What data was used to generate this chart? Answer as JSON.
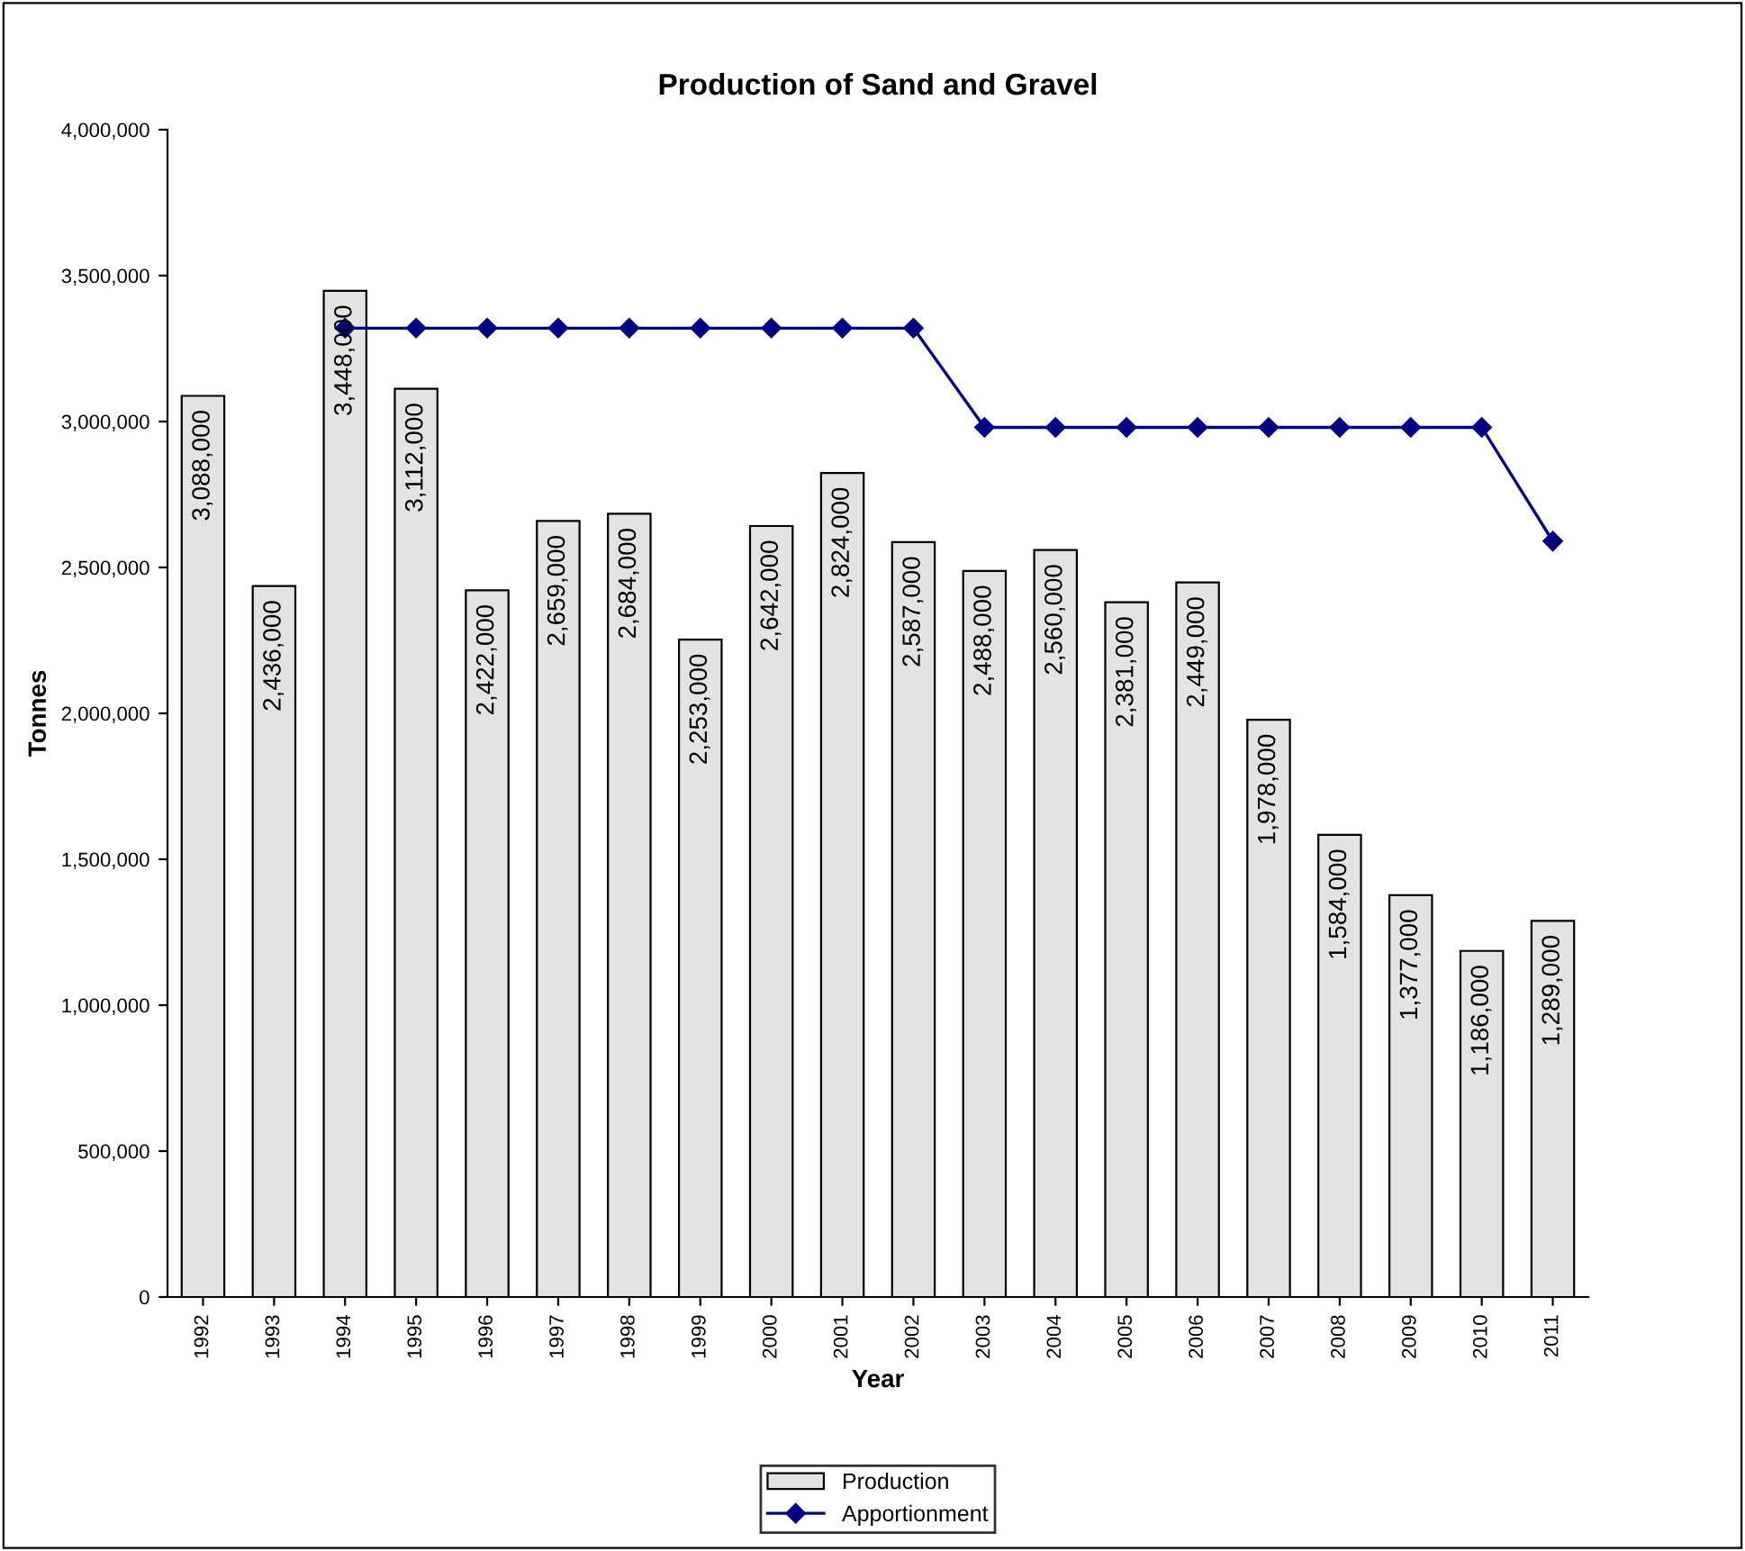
{
  "chart_data": {
    "type": "bar",
    "title": "Production of Sand and Gravel",
    "xlabel": "Year",
    "ylabel": "Tonnes",
    "categories": [
      "1992",
      "1993",
      "1994",
      "1995",
      "1996",
      "1997",
      "1998",
      "1999",
      "2000",
      "2001",
      "2002",
      "2003",
      "2004",
      "2005",
      "2006",
      "2007",
      "2008",
      "2009",
      "2010",
      "2011"
    ],
    "series": [
      {
        "name": "Production",
        "color": "#e3e3e3",
        "values": [
          3088000,
          2436000,
          3448000,
          3112000,
          2422000,
          2659000,
          2684000,
          2253000,
          2642000,
          2824000,
          2587000,
          2488000,
          2560000,
          2381000,
          2449000,
          1978000,
          1584000,
          1377000,
          1186000,
          1289000
        ],
        "value_labels": [
          "3,088,000",
          "2,436,000",
          "3,448,000",
          "3,112,000",
          "2,422,000",
          "2,659,000",
          "2,684,000",
          "2,253,000",
          "2,642,000",
          "2,824,000",
          "2,587,000",
          "2,488,000",
          "2,560,000",
          "2,381,000",
          "2,449,000",
          "1,978,000",
          "1,584,000",
          "1,377,000",
          "1,186,000",
          "1,289,000"
        ]
      },
      {
        "name": "Apportionment",
        "type": "line",
        "color": "#000080",
        "marker": "diamond",
        "values": [
          null,
          null,
          3320000,
          3320000,
          3320000,
          3320000,
          3320000,
          3320000,
          3320000,
          3320000,
          3320000,
          2980000,
          2980000,
          2980000,
          2980000,
          2980000,
          2980000,
          2980000,
          2980000,
          2590000
        ]
      }
    ],
    "ylim": [
      0,
      4000000
    ],
    "yticks": [
      {
        "value": 0,
        "label": "0"
      },
      {
        "value": 500000,
        "label": "500,000"
      },
      {
        "value": 1000000,
        "label": "1,000,000"
      },
      {
        "value": 1500000,
        "label": "1,500,000"
      },
      {
        "value": 2000000,
        "label": "2,000,000"
      },
      {
        "value": 2500000,
        "label": "2,500,000"
      },
      {
        "value": 3000000,
        "label": "3,000,000"
      },
      {
        "value": 3500000,
        "label": "3,500,000"
      },
      {
        "value": 4000000,
        "label": "4,000,000"
      }
    ],
    "grid": false,
    "legend": "bottom"
  }
}
